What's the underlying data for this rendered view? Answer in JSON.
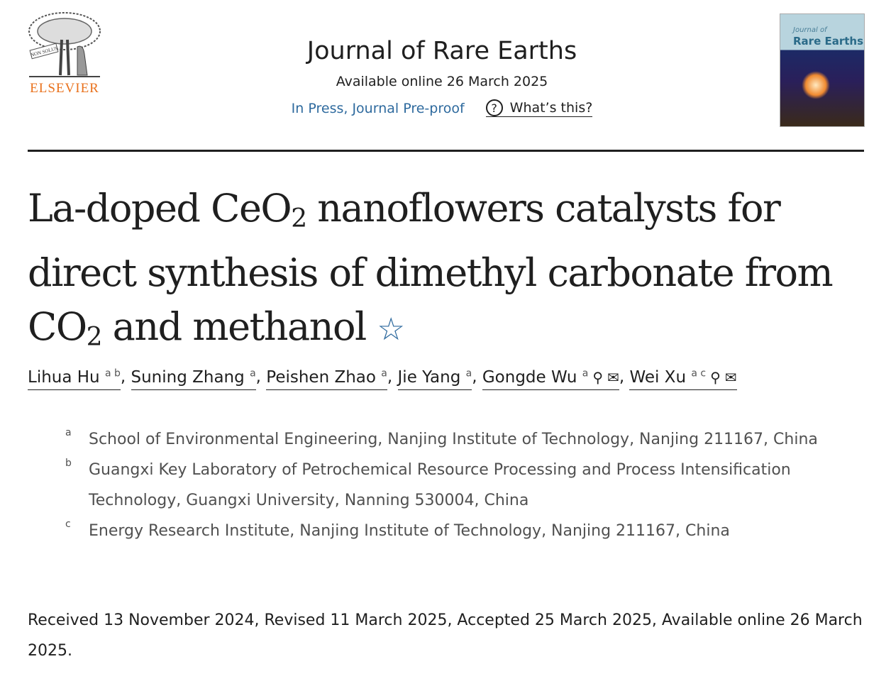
{
  "publisher": {
    "name": "ELSEVIER",
    "motto": "NON SOLUS"
  },
  "journal": {
    "title": "Journal of Rare Earths",
    "available": "Available online 26 March 2025",
    "status": "In Press, Journal Pre-proof",
    "help": "What’s this?",
    "cover_line1": "Journal of",
    "cover_line2": "Rare Earths"
  },
  "article": {
    "title_parts": [
      "La-doped CeO",
      "2",
      " nanoflowers catalysts for direct synthesis of dimethyl carbonate from CO",
      "2",
      " and methanol"
    ]
  },
  "authors": [
    {
      "name": "Lihua Hu",
      "sup": "a b"
    },
    {
      "name": "Suning Zhang",
      "sup": "a"
    },
    {
      "name": "Peishen Zhao",
      "sup": "a"
    },
    {
      "name": "Jie Yang",
      "sup": "a"
    },
    {
      "name": "Gongde Wu",
      "sup": "a"
    },
    {
      "name": "Wei Xu",
      "sup": "a c"
    }
  ],
  "affiliations": [
    {
      "label": "a",
      "text": "School of Environmental Engineering, Nanjing Institute of Technology, Nanjing 211167, China"
    },
    {
      "label": "b",
      "text": "Guangxi Key Laboratory of Petrochemical Resource Processing and Process Intensification Technology, Guangxi University, Nanning 530004, China"
    },
    {
      "label": "c",
      "text": "Energy Research Institute, Nanjing Institute of Technology, Nanjing 211167, China"
    }
  ],
  "dates": "Received 13 November 2024, Revised 11 March 2025, Accepted 25 March 2025, Available online 26 March 2025."
}
